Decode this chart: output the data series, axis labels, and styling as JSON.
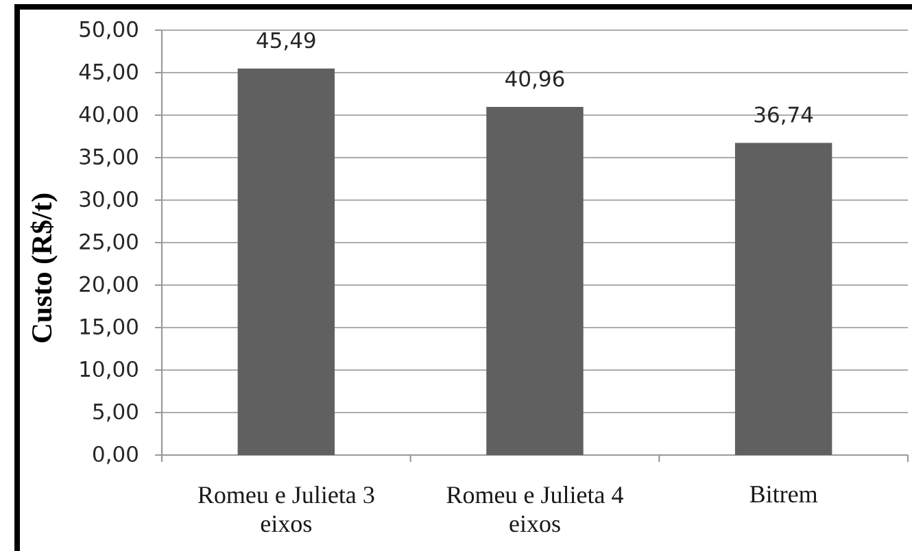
{
  "chart_data": {
    "type": "bar",
    "ylabel": "Custo (R$/t)",
    "categories": [
      "Romeu e Julieta 3 eixos",
      "Romeu e Julieta 4 eixos",
      "Bitrem"
    ],
    "values": [
      45.49,
      40.96,
      36.74
    ],
    "color": "#606060",
    "value_labels": [
      "45,49",
      "40,96",
      "36,74"
    ],
    "ylim": [
      0,
      50
    ],
    "yticks": [
      {
        "value": 0,
        "label": "0,00"
      },
      {
        "value": 5,
        "label": "5,00"
      },
      {
        "value": 10,
        "label": "10,00"
      },
      {
        "value": 15,
        "label": "15,00"
      },
      {
        "value": 20,
        "label": "20,00"
      },
      {
        "value": 25,
        "label": "25,00"
      },
      {
        "value": 30,
        "label": "30,00"
      },
      {
        "value": 35,
        "label": "35,00"
      },
      {
        "value": 40,
        "label": "40,00"
      },
      {
        "value": 45,
        "label": "45,00"
      },
      {
        "value": 50,
        "label": "50,00"
      }
    ],
    "grid": "y"
  }
}
